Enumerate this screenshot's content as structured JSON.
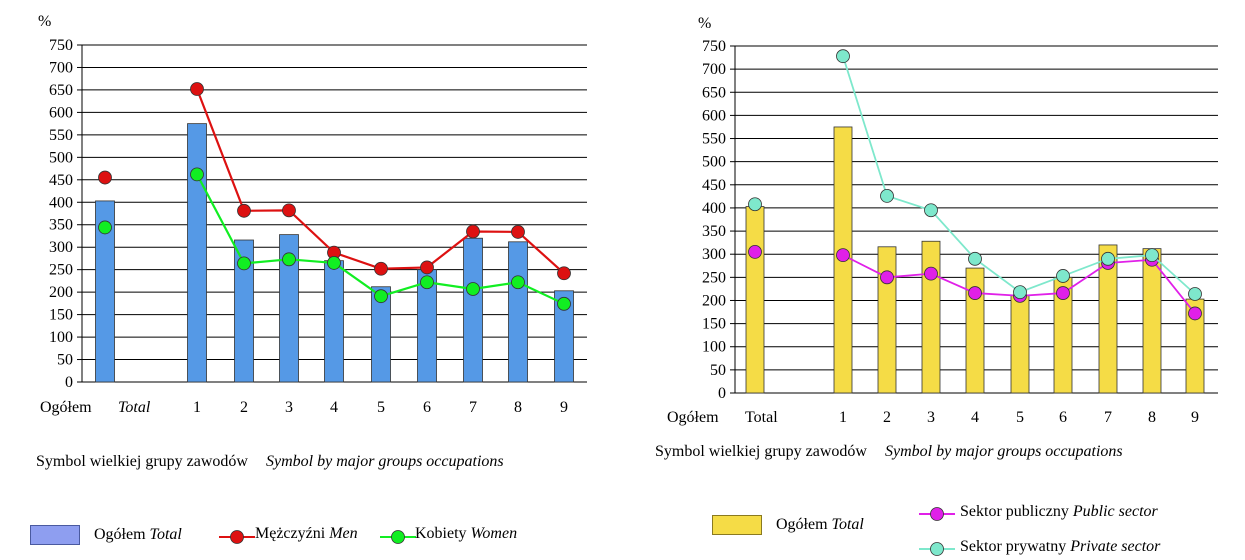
{
  "chart_data": [
    {
      "type": "bar",
      "ylabel": "%",
      "ylim": [
        0,
        750
      ],
      "yticks": [
        0,
        50,
        100,
        150,
        200,
        250,
        300,
        350,
        400,
        450,
        500,
        550,
        600,
        650,
        700,
        750
      ],
      "grid": true,
      "categories": [
        "Ogółem",
        "1",
        "2",
        "3",
        "4",
        "5",
        "6",
        "7",
        "8",
        "9"
      ],
      "first_category_italic": "Total",
      "xlabel": "Symbol wielkiej grupy zawodów",
      "xlabel_en": "Symbol by major groups occupations",
      "series": [
        {
          "name": "Ogółem",
          "name_en": "Total",
          "kind": "bar",
          "color": "#5599e6",
          "values": [
            403,
            575,
            316,
            328,
            270,
            212,
            250,
            320,
            312,
            203
          ]
        },
        {
          "name": "Mężczyźni",
          "name_en": "Men",
          "kind": "line",
          "color": "#dd1111",
          "values": [
            455,
            652,
            381,
            382,
            288,
            252,
            255,
            335,
            334,
            242
          ]
        },
        {
          "name": "Kobiety",
          "name_en": "Women",
          "kind": "line",
          "color": "#11ee22",
          "values": [
            344,
            462,
            264,
            273,
            265,
            191,
            222,
            207,
            222,
            174
          ]
        }
      ],
      "legend_position": "bottom"
    },
    {
      "type": "bar",
      "ylabel": "%",
      "ylim": [
        0,
        750
      ],
      "yticks": [
        0,
        50,
        100,
        150,
        200,
        250,
        300,
        350,
        400,
        450,
        500,
        550,
        600,
        650,
        700,
        750
      ],
      "grid": true,
      "categories": [
        "Ogółem",
        "1",
        "2",
        "3",
        "4",
        "5",
        "6",
        "7",
        "8",
        "9"
      ],
      "first_category_extra": "Total",
      "xlabel": "Symbol wielkiej grupy zawodów",
      "xlabel_en": "Symbol by major groups occupations",
      "series": [
        {
          "name": "Ogółem",
          "name_en": "Total",
          "kind": "bar",
          "color": "#f5dc46",
          "values": [
            403,
            575,
            316,
            328,
            270,
            212,
            250,
            320,
            312,
            203
          ]
        },
        {
          "name": "Sektor publiczny",
          "name_en": "Public sector",
          "kind": "line",
          "color": "#e020e8",
          "values": [
            305,
            298,
            250,
            258,
            216,
            210,
            216,
            281,
            288,
            172
          ]
        },
        {
          "name": "Sektor prywatny",
          "name_en": "Private sector",
          "kind": "line",
          "color": "#7ee8cc",
          "values": [
            408,
            728,
            426,
            395,
            290,
            218,
            253,
            290,
            298,
            214
          ]
        }
      ],
      "legend_position": "bottom"
    }
  ]
}
